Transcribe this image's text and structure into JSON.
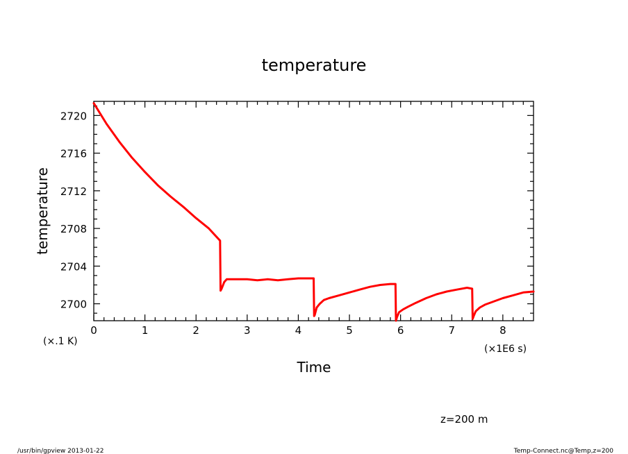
{
  "footer": {
    "left": "/usr/bin/gpview   2013-01-22",
    "right": "Temp-Connect.nc@Temp,z=200"
  },
  "annotation": "z=200 m",
  "chart_data": {
    "type": "line",
    "title": "temperature",
    "xlabel": "Time",
    "ylabel": "temperature",
    "x_unit_label": "(×1E6 s)",
    "y_unit_label": "(×.1 K)",
    "xlim": [
      0,
      8.6
    ],
    "ylim": [
      2698.2,
      2721.5
    ],
    "x_ticks": [
      0,
      1,
      2,
      3,
      4,
      5,
      6,
      7,
      8
    ],
    "x_tick_labels": [
      "0",
      "1",
      "2",
      "3",
      "4",
      "5",
      "6",
      "7",
      "8"
    ],
    "y_ticks": [
      2700,
      2704,
      2708,
      2712,
      2716,
      2720
    ],
    "y_tick_labels": [
      "2700",
      "2704",
      "2708",
      "2712",
      "2716",
      "2720"
    ],
    "grid": false,
    "line_color": "#ff0000",
    "series": [
      {
        "x": [
          0,
          0.25,
          0.5,
          0.75,
          1.0,
          1.25,
          1.5,
          1.75,
          2.0,
          2.25,
          2.47,
          2.48,
          2.5,
          2.55,
          2.6,
          2.7,
          2.8,
          3.0,
          3.2,
          3.4,
          3.6,
          3.8,
          4.0,
          4.2,
          4.3,
          4.31,
          4.32,
          4.36,
          4.42,
          4.5,
          4.6,
          4.8,
          5.0,
          5.2,
          5.4,
          5.6,
          5.8,
          5.9,
          5.91,
          5.93,
          5.97,
          6.05,
          6.15,
          6.3,
          6.5,
          6.7,
          6.9,
          7.1,
          7.3,
          7.4,
          7.41,
          7.43,
          7.47,
          7.55,
          7.65,
          7.8,
          8.0,
          8.2,
          8.4,
          8.6
        ],
        "y": [
          2721.3,
          2719.1,
          2717.2,
          2715.5,
          2714.0,
          2712.6,
          2711.4,
          2710.3,
          2709.1,
          2708.0,
          2706.7,
          2701.4,
          2701.6,
          2702.3,
          2702.6,
          2702.6,
          2702.6,
          2702.6,
          2702.5,
          2702.6,
          2702.5,
          2702.6,
          2702.7,
          2702.7,
          2702.7,
          2698.7,
          2698.8,
          2699.6,
          2700.0,
          2700.4,
          2700.6,
          2700.9,
          2701.2,
          2701.5,
          2701.8,
          2702.0,
          2702.1,
          2702.1,
          2698.2,
          2698.6,
          2699.1,
          2699.4,
          2699.7,
          2700.1,
          2700.6,
          2701.0,
          2701.3,
          2701.5,
          2701.7,
          2701.6,
          2698.4,
          2698.7,
          2699.2,
          2699.6,
          2699.9,
          2700.2,
          2700.6,
          2700.9,
          2701.2,
          2701.3
        ]
      }
    ]
  }
}
